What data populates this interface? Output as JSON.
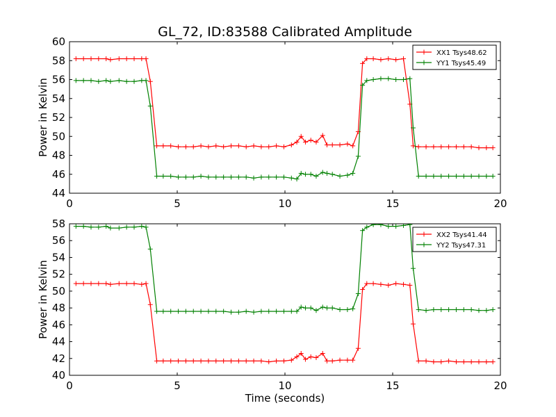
{
  "figure": {
    "title": "GL_72, ID:83588 Calibrated Amplitude",
    "xlabel": "Time (seconds)"
  },
  "chart_data": [
    {
      "type": "line",
      "title": "GL_72, ID:83588 Calibrated Amplitude",
      "xlabel": "",
      "ylabel": "Power in Kelvin",
      "xlim": [
        0,
        20
      ],
      "ylim": [
        44,
        60
      ],
      "xticks": [
        0,
        5,
        10,
        15,
        20
      ],
      "yticks": [
        44,
        46,
        48,
        50,
        52,
        54,
        56,
        58,
        60
      ],
      "grid": false,
      "legend_position": "top-right",
      "x": [
        0.3,
        0.65,
        1.0,
        1.35,
        1.7,
        1.9,
        2.3,
        2.65,
        3.0,
        3.35,
        3.55,
        3.75,
        4.05,
        4.35,
        4.7,
        5.05,
        5.4,
        5.75,
        6.1,
        6.45,
        6.8,
        7.15,
        7.5,
        7.85,
        8.2,
        8.55,
        8.9,
        9.25,
        9.6,
        9.95,
        10.3,
        10.55,
        10.75,
        10.95,
        11.2,
        11.45,
        11.75,
        11.95,
        12.2,
        12.55,
        12.9,
        13.15,
        13.4,
        13.6,
        13.8,
        14.1,
        14.45,
        14.8,
        15.15,
        15.5,
        15.8,
        15.95,
        16.2,
        16.55,
        16.9,
        17.25,
        17.6,
        17.95,
        18.3,
        18.65,
        19.0,
        19.35,
        19.65
      ],
      "series": [
        {
          "name": "XX1 Tsys48.62",
          "color": "#ff0000",
          "values": [
            58.2,
            58.2,
            58.2,
            58.2,
            58.2,
            58.1,
            58.2,
            58.2,
            58.2,
            58.2,
            58.2,
            55.8,
            49.0,
            49.0,
            49.0,
            48.9,
            48.9,
            48.9,
            49.0,
            48.9,
            49.0,
            48.9,
            49.0,
            49.0,
            48.9,
            49.0,
            48.9,
            48.9,
            49.0,
            48.9,
            49.1,
            49.4,
            50.0,
            49.4,
            49.6,
            49.4,
            50.1,
            49.1,
            49.1,
            49.1,
            49.2,
            49.0,
            50.5,
            57.7,
            58.2,
            58.2,
            58.1,
            58.2,
            58.1,
            58.2,
            53.4,
            49.0,
            48.9,
            48.9,
            48.9,
            48.9,
            48.9,
            48.9,
            48.9,
            48.9,
            48.8,
            48.8,
            48.8
          ]
        },
        {
          "name": "YY1 Tsys45.49",
          "color": "#008000",
          "values": [
            55.9,
            55.9,
            55.9,
            55.8,
            55.9,
            55.8,
            55.9,
            55.8,
            55.8,
            55.9,
            55.9,
            53.2,
            45.8,
            45.8,
            45.8,
            45.7,
            45.7,
            45.7,
            45.8,
            45.7,
            45.7,
            45.7,
            45.7,
            45.7,
            45.7,
            45.6,
            45.7,
            45.7,
            45.7,
            45.7,
            45.6,
            45.5,
            46.1,
            46.0,
            46.0,
            45.8,
            46.2,
            46.1,
            46.0,
            45.8,
            45.9,
            46.1,
            47.9,
            55.4,
            55.9,
            56.0,
            56.1,
            56.1,
            56.0,
            56.0,
            56.1,
            50.9,
            45.8,
            45.8,
            45.8,
            45.8,
            45.8,
            45.8,
            45.8,
            45.8,
            45.8,
            45.8,
            45.8
          ]
        }
      ]
    },
    {
      "type": "line",
      "title": "",
      "xlabel": "Time (seconds)",
      "ylabel": "Power in Kelvin",
      "xlim": [
        0,
        20
      ],
      "ylim": [
        40,
        58
      ],
      "xticks": [
        0,
        5,
        10,
        15,
        20
      ],
      "yticks": [
        40,
        42,
        44,
        46,
        48,
        50,
        52,
        54,
        56,
        58
      ],
      "grid": false,
      "legend_position": "top-right",
      "x": [
        0.3,
        0.65,
        1.0,
        1.35,
        1.7,
        1.9,
        2.3,
        2.65,
        3.0,
        3.35,
        3.55,
        3.75,
        4.05,
        4.35,
        4.7,
        5.05,
        5.4,
        5.75,
        6.1,
        6.45,
        6.8,
        7.15,
        7.5,
        7.85,
        8.2,
        8.55,
        8.9,
        9.25,
        9.6,
        9.95,
        10.3,
        10.55,
        10.75,
        10.95,
        11.2,
        11.45,
        11.75,
        11.95,
        12.2,
        12.55,
        12.9,
        13.15,
        13.4,
        13.6,
        13.8,
        14.1,
        14.45,
        14.8,
        15.15,
        15.5,
        15.8,
        15.95,
        16.2,
        16.55,
        16.9,
        17.25,
        17.6,
        17.95,
        18.3,
        18.65,
        19.0,
        19.35,
        19.65
      ],
      "series": [
        {
          "name": "XX2 Tsys41.44",
          "color": "#ff0000",
          "values": [
            50.9,
            50.9,
            50.9,
            50.9,
            50.9,
            50.8,
            50.9,
            50.9,
            50.9,
            50.8,
            50.9,
            48.4,
            41.7,
            41.7,
            41.7,
            41.7,
            41.7,
            41.7,
            41.7,
            41.7,
            41.7,
            41.7,
            41.7,
            41.7,
            41.7,
            41.7,
            41.7,
            41.6,
            41.7,
            41.7,
            41.8,
            42.2,
            42.6,
            41.9,
            42.2,
            42.1,
            42.6,
            41.7,
            41.7,
            41.8,
            41.8,
            41.8,
            43.2,
            50.2,
            50.9,
            50.9,
            50.8,
            50.7,
            50.9,
            50.8,
            50.7,
            46.1,
            41.7,
            41.7,
            41.6,
            41.6,
            41.7,
            41.6,
            41.6,
            41.6,
            41.6,
            41.6,
            41.6
          ]
        },
        {
          "name": "YY2 Tsys47.31",
          "color": "#008000",
          "values": [
            57.7,
            57.7,
            57.6,
            57.6,
            57.7,
            57.5,
            57.5,
            57.6,
            57.6,
            57.7,
            57.6,
            55.0,
            47.6,
            47.6,
            47.6,
            47.6,
            47.6,
            47.6,
            47.6,
            47.6,
            47.6,
            47.6,
            47.5,
            47.5,
            47.6,
            47.5,
            47.6,
            47.6,
            47.6,
            47.6,
            47.6,
            47.6,
            48.1,
            48.0,
            48.0,
            47.7,
            48.1,
            48.0,
            48.0,
            47.8,
            47.8,
            47.9,
            49.7,
            57.2,
            57.6,
            57.9,
            57.9,
            57.7,
            57.7,
            57.8,
            57.9,
            52.7,
            47.8,
            47.7,
            47.8,
            47.8,
            47.8,
            47.8,
            47.8,
            47.8,
            47.7,
            47.7,
            47.8
          ]
        }
      ]
    }
  ]
}
